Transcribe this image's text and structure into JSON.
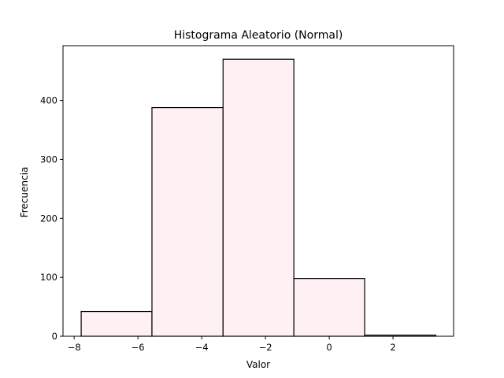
{
  "chart_data": {
    "type": "bar",
    "title": "Histograma Aleatorio (Normal)",
    "xlabel": "Valor",
    "ylabel": "Frecuencia",
    "bin_edges": [
      -7.78,
      -5.56,
      -3.33,
      -1.11,
      1.11,
      3.34
    ],
    "values": [
      42,
      388,
      470,
      98,
      2
    ],
    "xlim": [
      -8.35,
      3.9
    ],
    "ylim": [
      0,
      493
    ],
    "xticks": [
      -8,
      -6,
      -4,
      -2,
      0,
      2
    ],
    "xtick_labels": [
      "−8",
      "−6",
      "−4",
      "−2",
      "0",
      "2"
    ],
    "yticks": [
      0,
      100,
      200,
      300,
      400
    ],
    "ytick_labels": [
      "0",
      "100",
      "200",
      "300",
      "400"
    ],
    "bar_fill": "#fff0f3",
    "bar_edge": "#000000",
    "grid": false,
    "legend": "none"
  }
}
